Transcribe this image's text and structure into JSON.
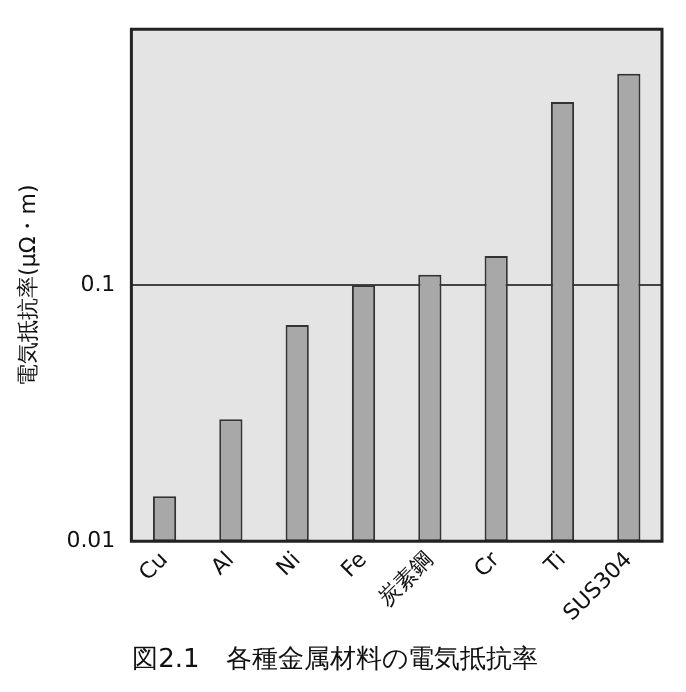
{
  "chart_data": {
    "type": "bar",
    "title": "図2.1　各種金属材料の電気抵抗率",
    "ylabel": "電気抵抗率(μΩ・m)",
    "categories": [
      "Cu",
      "Al",
      "Ni",
      "Fe",
      "炭素鋼",
      "Cr",
      "Ti",
      "SUS304"
    ],
    "values": [
      0.015,
      0.03,
      0.07,
      0.1,
      0.11,
      0.13,
      0.52,
      0.67
    ],
    "color": "#a8a8a8",
    "log": true,
    "ylim": [
      0.01,
      1
    ],
    "yticks": [
      0.01,
      0.1
    ],
    "grid": "y",
    "legend": false
  }
}
